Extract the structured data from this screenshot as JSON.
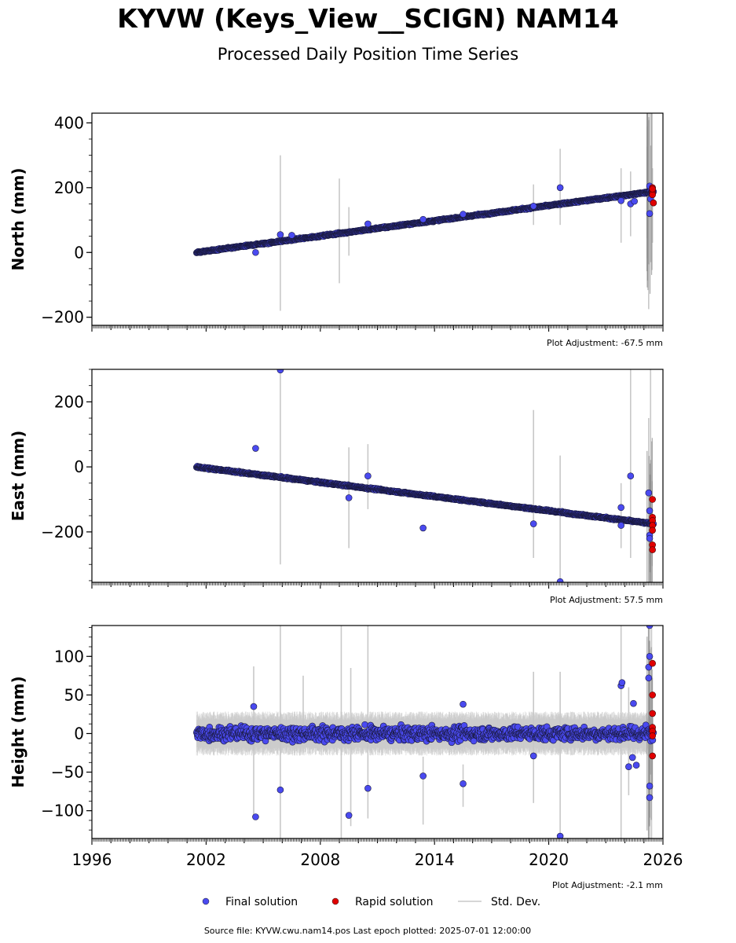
{
  "title": "KYVW (Keys_View__SCIGN) NAM14",
  "subtitle": "Processed Daily Position Time Series",
  "source_text": "Source file: KYVW.cwu.nam14.pos  Last epoch plotted: 2025-07-01 12:00:00",
  "colors": {
    "final": "#4a4af0",
    "final_edge": "#1a1a40",
    "rapid": "#e00000",
    "stddev": "#c8c8c8"
  },
  "legend": [
    {
      "label": "Final solution",
      "kind": "final"
    },
    {
      "label": "Rapid solution",
      "kind": "rapid"
    },
    {
      "label": "Std. Dev.",
      "kind": "stddev"
    }
  ],
  "chart_data": [
    {
      "type": "scatter",
      "panel": "north",
      "ylabel": "North (mm)",
      "adjustment": "Plot Adjustment: -67.5 mm",
      "xlim": [
        1996,
        2026
      ],
      "ylim": [
        -225,
        430
      ],
      "yticks": [
        -200,
        0,
        200,
        400
      ],
      "ytick_labels": [
        "−200",
        "0",
        "200",
        "400"
      ],
      "trend": {
        "x": [
          2001.5,
          2025.5
        ],
        "y": [
          0,
          188
        ],
        "noise": 3
      },
      "final_outliers": [
        [
          2004.6,
          0
        ],
        [
          2005.9,
          55
        ],
        [
          2006.5,
          53
        ],
        [
          2010.5,
          88
        ],
        [
          2013.4,
          102
        ],
        [
          2015.5,
          118
        ],
        [
          2019.2,
          143
        ],
        [
          2020.6,
          200
        ],
        [
          2023.8,
          160
        ],
        [
          2024.3,
          150
        ],
        [
          2024.5,
          158
        ],
        [
          2025.3,
          120
        ],
        [
          2025.3,
          205
        ],
        [
          2025.35,
          165
        ]
      ],
      "rapid": [
        [
          2025.45,
          200
        ],
        [
          2025.45,
          192
        ],
        [
          2025.45,
          185
        ],
        [
          2025.45,
          178
        ],
        [
          2025.5,
          153
        ],
        [
          2025.45,
          196
        ]
      ],
      "stddev": [
        [
          2005.9,
          -180,
          300
        ],
        [
          2009.0,
          -95,
          228
        ],
        [
          2009.5,
          -10,
          140
        ],
        [
          2019.2,
          85,
          210
        ],
        [
          2020.6,
          85,
          320
        ],
        [
          2023.8,
          30,
          260
        ],
        [
          2024.3,
          50,
          250
        ],
        [
          2025.25,
          -175,
          418
        ],
        [
          2025.35,
          -30,
          330
        ],
        [
          2025.45,
          30,
          260
        ]
      ]
    },
    {
      "type": "scatter",
      "panel": "east",
      "ylabel": "East (mm)",
      "adjustment": "Plot Adjustment: 57.5 mm",
      "xlim": [
        1996,
        2026
      ],
      "ylim": [
        -355,
        300
      ],
      "yticks": [
        -200,
        0,
        200
      ],
      "ytick_labels": [
        "−200",
        "0",
        "200"
      ],
      "trend": {
        "x": [
          2001.5,
          2025.5
        ],
        "y": [
          0,
          -175
        ],
        "noise": 3
      },
      "final_outliers": [
        [
          2004.6,
          57
        ],
        [
          2005.9,
          298
        ],
        [
          2009.5,
          -95
        ],
        [
          2010.5,
          -28
        ],
        [
          2013.4,
          -188
        ],
        [
          2019.2,
          -175
        ],
        [
          2020.6,
          -353
        ],
        [
          2023.8,
          -125
        ],
        [
          2023.8,
          -180
        ],
        [
          2024.3,
          -28
        ],
        [
          2025.25,
          -80
        ],
        [
          2025.3,
          -135
        ],
        [
          2025.3,
          -210
        ],
        [
          2025.3,
          -220
        ]
      ],
      "rapid": [
        [
          2025.45,
          -100
        ],
        [
          2025.45,
          -155
        ],
        [
          2025.45,
          -165
        ],
        [
          2025.45,
          -180
        ],
        [
          2025.45,
          -195
        ],
        [
          2025.45,
          -240
        ],
        [
          2025.45,
          -255
        ]
      ],
      "stddev": [
        [
          2005.9,
          -300,
          300
        ],
        [
          2009.5,
          -250,
          60
        ],
        [
          2010.5,
          -130,
          70
        ],
        [
          2019.2,
          -280,
          175
        ],
        [
          2020.6,
          -350,
          35
        ],
        [
          2023.8,
          -250,
          -50
        ],
        [
          2024.3,
          -280,
          300
        ],
        [
          2025.25,
          -355,
          150
        ],
        [
          2025.35,
          -355,
          300
        ]
      ]
    },
    {
      "type": "scatter",
      "panel": "height",
      "ylabel": "Height (mm)",
      "adjustment": "Plot Adjustment: -2.1 mm",
      "xlim": [
        1996,
        2026
      ],
      "ylim": [
        -136,
        140
      ],
      "yticks": [
        -100,
        -50,
        0,
        50,
        100
      ],
      "ytick_labels": [
        "−100",
        "−50",
        "0",
        "50",
        "100"
      ],
      "xticks": [
        1996,
        2002,
        2008,
        2014,
        2020,
        2026
      ],
      "trend": {
        "x": [
          2001.5,
          2025.5
        ],
        "y": [
          0,
          0
        ],
        "noise": 11
      },
      "final_outliers": [
        [
          2004.5,
          35
        ],
        [
          2004.6,
          -108
        ],
        [
          2005.9,
          -73
        ],
        [
          2009.5,
          -106
        ],
        [
          2010.5,
          -71
        ],
        [
          2013.4,
          -55
        ],
        [
          2015.5,
          -65
        ],
        [
          2015.5,
          38
        ],
        [
          2019.2,
          -29
        ],
        [
          2020.6,
          -133
        ],
        [
          2023.8,
          62
        ],
        [
          2023.85,
          66
        ],
        [
          2024.2,
          -43
        ],
        [
          2024.4,
          -31
        ],
        [
          2024.45,
          39
        ],
        [
          2024.6,
          -41
        ],
        [
          2025.25,
          72
        ],
        [
          2025.25,
          86
        ],
        [
          2025.3,
          100
        ],
        [
          2025.3,
          -83
        ],
        [
          2025.3,
          -68
        ],
        [
          2025.3,
          140
        ]
      ],
      "rapid": [
        [
          2025.45,
          91
        ],
        [
          2025.45,
          50
        ],
        [
          2025.45,
          26
        ],
        [
          2025.45,
          8
        ],
        [
          2025.45,
          3
        ],
        [
          2025.45,
          -3
        ],
        [
          2025.45,
          -29
        ]
      ],
      "stddev": [
        [
          2004.5,
          -110,
          87
        ],
        [
          2005.9,
          -136,
          140
        ],
        [
          2007.1,
          -10,
          75
        ],
        [
          2009.1,
          -136,
          140
        ],
        [
          2009.6,
          -120,
          85
        ],
        [
          2010.5,
          -110,
          140
        ],
        [
          2013.4,
          -118,
          -30
        ],
        [
          2015.5,
          -95,
          -40
        ],
        [
          2019.2,
          -90,
          80
        ],
        [
          2020.6,
          -136,
          80
        ],
        [
          2023.8,
          -136,
          140
        ],
        [
          2024.2,
          -80,
          60
        ],
        [
          2025.25,
          -136,
          140
        ],
        [
          2025.3,
          -136,
          140
        ],
        [
          2025.4,
          -136,
          140
        ]
      ]
    }
  ]
}
